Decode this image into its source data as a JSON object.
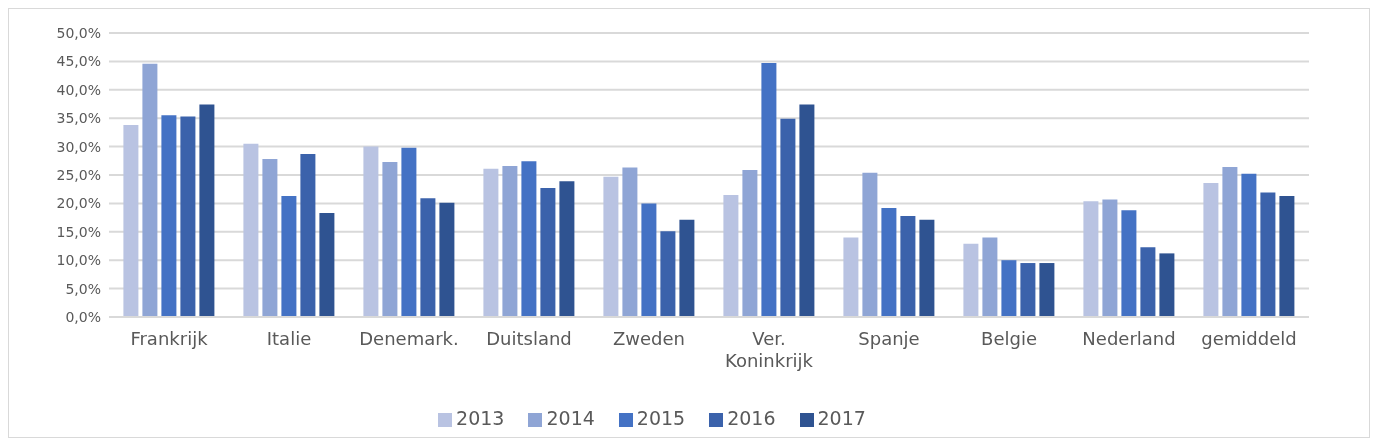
{
  "chart_data": {
    "type": "bar",
    "categories": [
      "Frankrijk",
      "Italie",
      "Denemark.",
      "Duitsland",
      "Zweden",
      "Ver. Koninkrijk",
      "Spanje",
      "Belgie",
      "Nederland",
      "gemiddeld"
    ],
    "series": [
      {
        "name": "2013",
        "color": "#b9c3e2",
        "values": [
          33.8,
          30.5,
          30.0,
          26.1,
          24.7,
          21.5,
          14.0,
          12.9,
          20.4,
          23.6
        ]
      },
      {
        "name": "2014",
        "color": "#8fa5d5",
        "values": [
          44.6,
          27.8,
          27.3,
          26.6,
          26.3,
          25.9,
          25.4,
          14.0,
          20.7,
          26.4
        ]
      },
      {
        "name": "2015",
        "color": "#4472c4",
        "values": [
          35.5,
          21.3,
          29.8,
          27.4,
          20.0,
          44.7,
          19.2,
          10.0,
          18.8,
          25.2
        ]
      },
      {
        "name": "2016",
        "color": "#3b62ab",
        "values": [
          35.3,
          28.7,
          20.9,
          22.7,
          15.1,
          34.9,
          17.8,
          9.5,
          12.3,
          21.9
        ]
      },
      {
        "name": "2017",
        "color": "#2f5391",
        "values": [
          37.4,
          18.3,
          20.1,
          23.9,
          17.1,
          37.4,
          17.1,
          9.5,
          11.2,
          21.3
        ]
      }
    ],
    "ylim": [
      0,
      50
    ],
    "yticks": [
      {
        "value": 0,
        "label": "0,0%"
      },
      {
        "value": 5,
        "label": "5,0%"
      },
      {
        "value": 10,
        "label": "10,0%"
      },
      {
        "value": 15,
        "label": "15,0%"
      },
      {
        "value": 20,
        "label": "20,0%"
      },
      {
        "value": 25,
        "label": "25,0%"
      },
      {
        "value": 30,
        "label": "30,0%"
      },
      {
        "value": 35,
        "label": "35,0%"
      },
      {
        "value": 40,
        "label": "40,0%"
      },
      {
        "value": 45,
        "label": "45,0%"
      },
      {
        "value": 50,
        "label": "50,0%"
      }
    ],
    "grid": "y",
    "legend": "bottom"
  }
}
